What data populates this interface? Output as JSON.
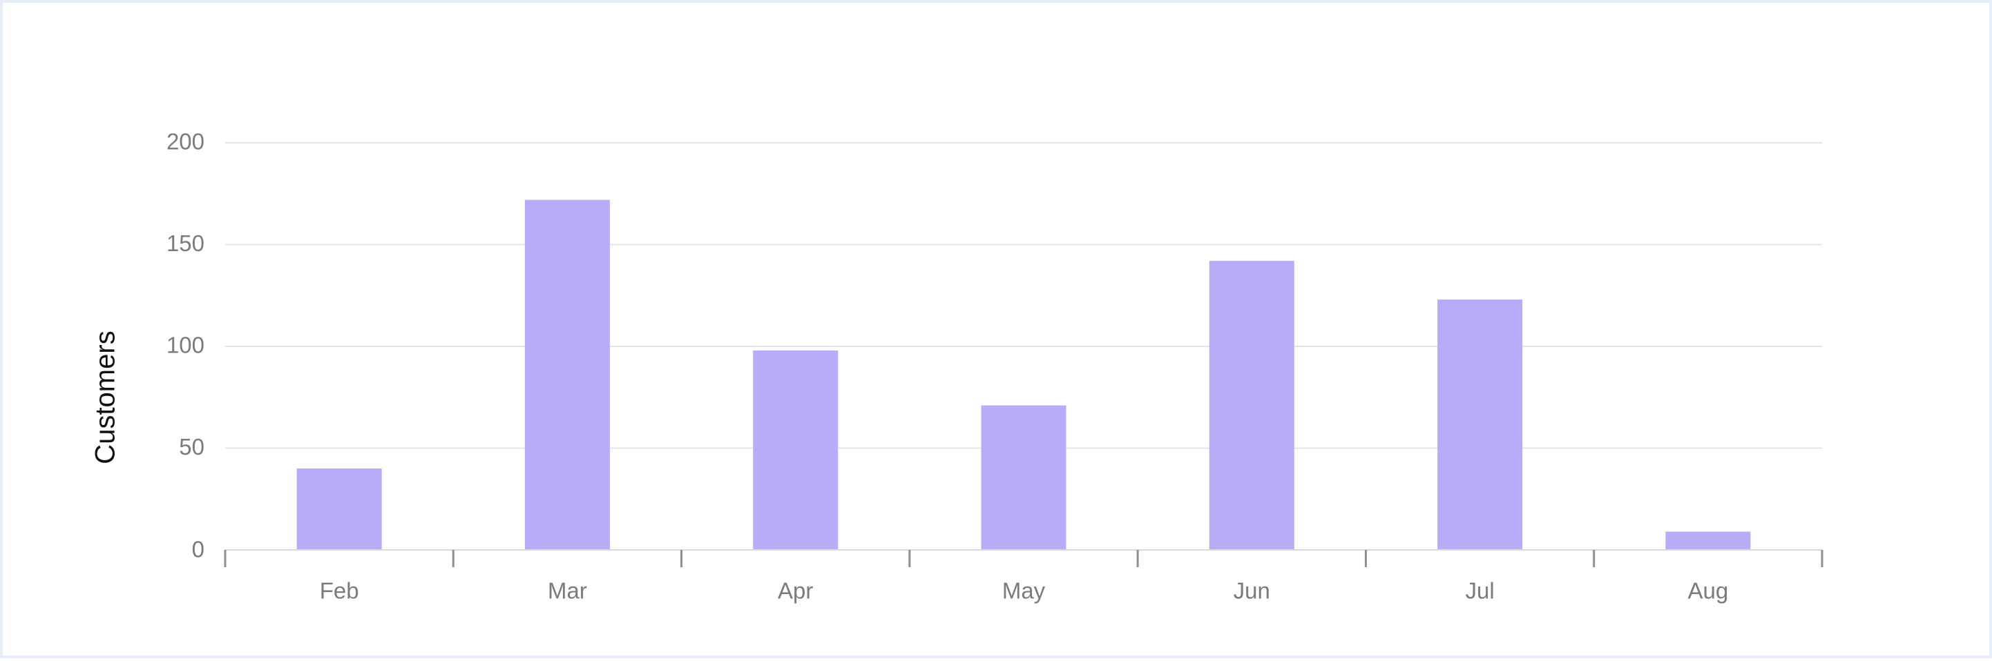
{
  "chart_data": {
    "type": "bar",
    "categories": [
      "Feb",
      "Mar",
      "Apr",
      "May",
      "Jun",
      "Jul",
      "Aug"
    ],
    "values": [
      40,
      172,
      98,
      71,
      142,
      123,
      9
    ],
    "xlabel": "",
    "ylabel": "Customers",
    "ylim": [
      0,
      200
    ],
    "yticks": [
      "0",
      "50",
      "100",
      "150",
      "200"
    ],
    "grid": true,
    "bar_color": "#b8acf8",
    "grid_color": "#e5e5e8",
    "axis_text_color": "#7b7b7b"
  }
}
